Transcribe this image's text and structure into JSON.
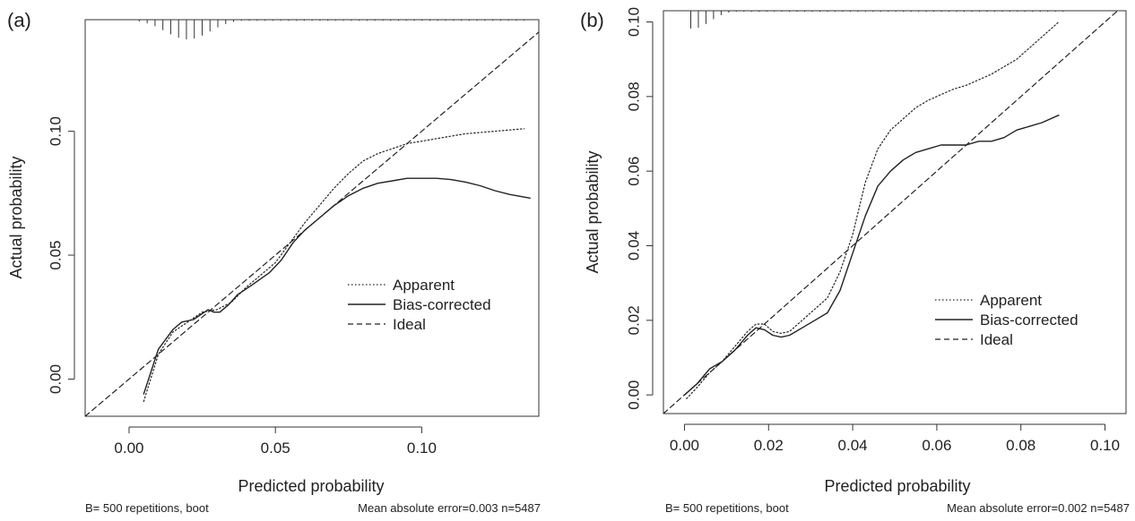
{
  "chart_data": [
    {
      "type": "line",
      "panel_label": "(a)",
      "xlabel": "Predicted probability",
      "ylabel": "Actual probability",
      "xlim": [
        -0.015,
        0.14
      ],
      "ylim": [
        -0.015,
        0.145
      ],
      "x_ticks": [
        0.0,
        0.05,
        0.1
      ],
      "x_tick_labels": [
        "0.00",
        "0.05",
        "0.10"
      ],
      "y_ticks": [
        0.0,
        0.05,
        0.1
      ],
      "y_tick_labels": [
        "0.00",
        "0.05",
        "0.10"
      ],
      "legend": {
        "placement": "bottom-right",
        "entries": [
          "Apparent",
          "Bias-corrected",
          "Ideal"
        ]
      },
      "footer_left": "B= 500 repetitions, boot",
      "footer_right": "Mean absolute error=0.003 n=5487",
      "series": [
        {
          "name": "Apparent",
          "style": "dotted",
          "x": [
            0.005,
            0.01,
            0.015,
            0.02,
            0.025,
            0.03,
            0.035,
            0.04,
            0.045,
            0.05,
            0.055,
            0.06,
            0.065,
            0.07,
            0.075,
            0.08,
            0.085,
            0.09,
            0.095,
            0.1,
            0.105,
            0.11,
            0.115,
            0.12,
            0.125,
            0.13,
            0.135
          ],
          "y": [
            -0.009,
            0.01,
            0.019,
            0.023,
            0.027,
            0.028,
            0.031,
            0.037,
            0.042,
            0.047,
            0.055,
            0.063,
            0.07,
            0.077,
            0.083,
            0.088,
            0.091,
            0.093,
            0.095,
            0.096,
            0.097,
            0.098,
            0.099,
            0.0995,
            0.1,
            0.1005,
            0.101
          ]
        },
        {
          "name": "Bias-corrected",
          "style": "solid",
          "x": [
            0.005,
            0.01,
            0.015,
            0.018,
            0.022,
            0.027,
            0.029,
            0.031,
            0.034,
            0.037,
            0.042,
            0.048,
            0.052,
            0.056,
            0.06,
            0.065,
            0.07,
            0.075,
            0.08,
            0.085,
            0.09,
            0.095,
            0.1,
            0.105,
            0.11,
            0.115,
            0.12,
            0.125,
            0.13,
            0.137
          ],
          "y": [
            -0.006,
            0.012,
            0.02,
            0.023,
            0.024,
            0.028,
            0.027,
            0.027,
            0.03,
            0.034,
            0.038,
            0.043,
            0.048,
            0.055,
            0.06,
            0.065,
            0.07,
            0.074,
            0.077,
            0.079,
            0.08,
            0.081,
            0.081,
            0.081,
            0.0805,
            0.0795,
            0.078,
            0.076,
            0.0745,
            0.073
          ]
        },
        {
          "name": "Ideal",
          "style": "dashed",
          "x": [
            -0.015,
            0.14
          ],
          "y": [
            -0.015,
            0.14
          ]
        }
      ]
    },
    {
      "type": "line",
      "panel_label": "(b)",
      "xlabel": "Predicted probability",
      "ylabel": "Actual probability",
      "xlim": [
        -0.005,
        0.105
      ],
      "ylim": [
        -0.005,
        0.103
      ],
      "x_ticks": [
        0.0,
        0.02,
        0.04,
        0.06,
        0.08,
        0.1
      ],
      "x_tick_labels": [
        "0.00",
        "0.02",
        "0.04",
        "0.06",
        "0.08",
        "0.10"
      ],
      "y_ticks": [
        0.0,
        0.02,
        0.04,
        0.06,
        0.08,
        0.1
      ],
      "y_tick_labels": [
        "0.00",
        "0.02",
        "0.04",
        "0.06",
        "0.08",
        "0.10"
      ],
      "legend": {
        "placement": "bottom-right",
        "entries": [
          "Apparent",
          "Bias-corrected",
          "Ideal"
        ]
      },
      "footer_left": "B= 500 repetitions, boot",
      "footer_right": "Mean absolute error=0.002 n=5487",
      "series": [
        {
          "name": "Apparent",
          "style": "dotted",
          "x": [
            0.0005,
            0.003,
            0.006,
            0.009,
            0.012,
            0.015,
            0.017,
            0.019,
            0.021,
            0.023,
            0.025,
            0.028,
            0.031,
            0.034,
            0.037,
            0.04,
            0.043,
            0.046,
            0.049,
            0.052,
            0.055,
            0.058,
            0.061,
            0.064,
            0.067,
            0.07,
            0.073,
            0.076,
            0.079,
            0.082,
            0.085,
            0.088,
            0.089
          ],
          "y": [
            -0.001,
            0.002,
            0.006,
            0.009,
            0.013,
            0.017,
            0.019,
            0.019,
            0.017,
            0.0165,
            0.017,
            0.02,
            0.023,
            0.026,
            0.033,
            0.043,
            0.057,
            0.066,
            0.071,
            0.074,
            0.077,
            0.079,
            0.0805,
            0.082,
            0.083,
            0.0845,
            0.086,
            0.088,
            0.09,
            0.093,
            0.096,
            0.099,
            0.1
          ]
        },
        {
          "name": "Bias-corrected",
          "style": "solid",
          "x": [
            0.0,
            0.003,
            0.006,
            0.009,
            0.012,
            0.015,
            0.017,
            0.019,
            0.021,
            0.023,
            0.025,
            0.028,
            0.031,
            0.034,
            0.037,
            0.04,
            0.043,
            0.046,
            0.049,
            0.052,
            0.055,
            0.058,
            0.061,
            0.064,
            0.067,
            0.07,
            0.073,
            0.076,
            0.079,
            0.082,
            0.085,
            0.089
          ],
          "y": [
            0.0,
            0.003,
            0.007,
            0.009,
            0.012,
            0.016,
            0.018,
            0.0175,
            0.016,
            0.0155,
            0.016,
            0.018,
            0.02,
            0.022,
            0.028,
            0.038,
            0.048,
            0.056,
            0.06,
            0.063,
            0.065,
            0.066,
            0.067,
            0.067,
            0.067,
            0.068,
            0.068,
            0.069,
            0.071,
            0.072,
            0.073,
            0.075
          ]
        },
        {
          "name": "Ideal",
          "style": "dashed",
          "x": [
            -0.005,
            0.105
          ],
          "y": [
            -0.005,
            0.105
          ]
        }
      ]
    }
  ]
}
